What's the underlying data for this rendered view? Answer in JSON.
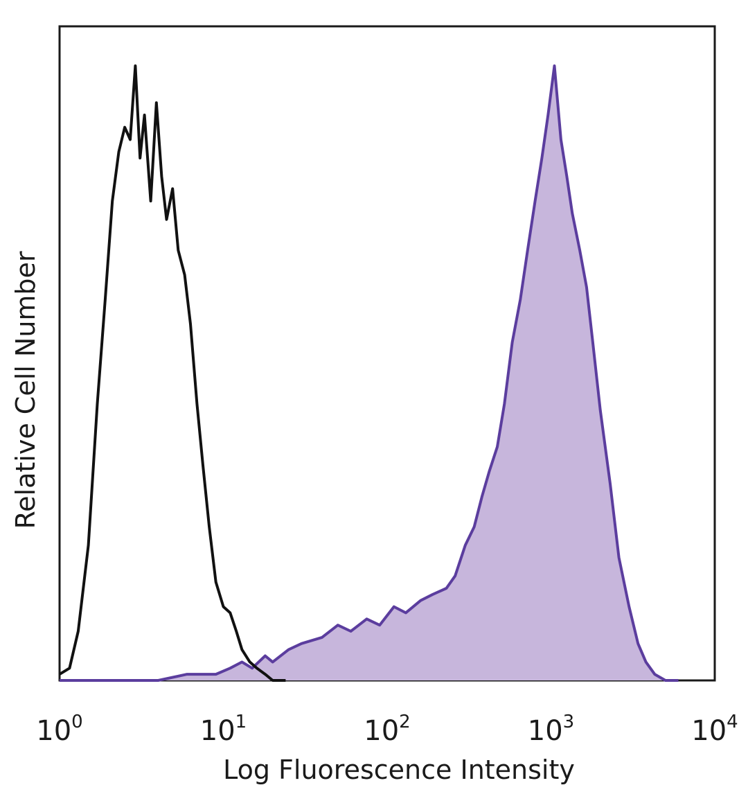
{
  "chart_data": {
    "type": "area",
    "xlabel": "Log Fluorescence Intensity",
    "ylabel": "Relative Cell Number",
    "xscale": "log",
    "xlim": [
      1,
      10000
    ],
    "ylim": [
      0,
      100
    ],
    "grid": false,
    "legend": "none",
    "x_ticks": [
      {
        "base": "10",
        "exp": "0",
        "value": 1
      },
      {
        "base": "10",
        "exp": "1",
        "value": 10
      },
      {
        "base": "10",
        "exp": "2",
        "value": 100
      },
      {
        "base": "10",
        "exp": "3",
        "value": 1000
      },
      {
        "base": "10",
        "exp": "4",
        "value": 10000
      }
    ],
    "series": [
      {
        "style": "outline",
        "color": "#111111",
        "x": [
          1,
          1.15,
          1.3,
          1.5,
          1.7,
          1.9,
          2.1,
          2.3,
          2.5,
          2.7,
          2.9,
          3.1,
          3.3,
          3.6,
          3.9,
          4.2,
          4.5,
          4.9,
          5.3,
          5.8,
          6.3,
          6.9,
          7.5,
          8.2,
          9,
          10,
          11,
          12,
          13,
          14.5,
          16,
          18,
          20,
          24
        ],
        "y": [
          1,
          2,
          8,
          22,
          45,
          62,
          78,
          86,
          90,
          88,
          100,
          85,
          92,
          78,
          94,
          82,
          75,
          80,
          70,
          66,
          58,
          45,
          35,
          25,
          16,
          12,
          11,
          8,
          5,
          3,
          2,
          1,
          0,
          0
        ]
      },
      {
        "style": "filled",
        "color": "#5b3d9e",
        "fill": "#c7b6dc",
        "x": [
          1,
          2,
          4,
          6,
          9,
          11,
          13,
          15,
          18,
          20,
          25,
          30,
          40,
          50,
          60,
          75,
          90,
          110,
          130,
          160,
          190,
          230,
          260,
          300,
          340,
          380,
          420,
          470,
          520,
          580,
          650,
          720,
          800,
          880,
          960,
          1050,
          1150,
          1250,
          1350,
          1500,
          1650,
          1800,
          2000,
          2300,
          2600,
          3000,
          3400,
          3800,
          4300,
          5000,
          6000
        ],
        "y": [
          0,
          0,
          0,
          1,
          1,
          2,
          3,
          2,
          4,
          3,
          5,
          6,
          7,
          9,
          8,
          10,
          9,
          12,
          11,
          13,
          14,
          15,
          17,
          22,
          25,
          30,
          34,
          38,
          45,
          55,
          62,
          70,
          78,
          85,
          92,
          100,
          88,
          82,
          76,
          70,
          64,
          55,
          44,
          32,
          20,
          12,
          6,
          3,
          1,
          0,
          0
        ]
      }
    ]
  }
}
